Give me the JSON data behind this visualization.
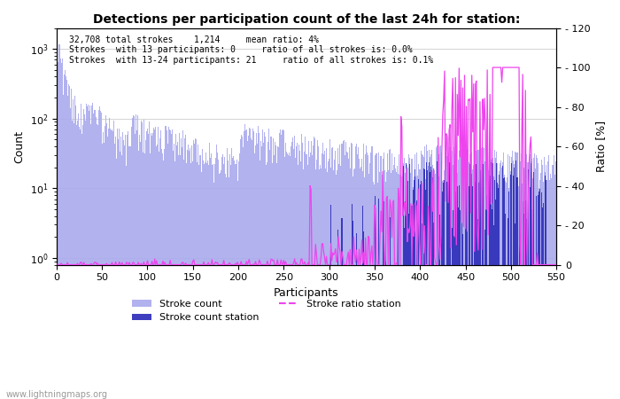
{
  "title": "Detections per participation count of the last 24h for station:",
  "xlabel": "Participants",
  "ylabel_left": "Count",
  "ylabel_right": "Ratio [%]",
  "annotation_lines": [
    "32,708 total strokes    1,214     mean ratio: 4%",
    "Strokes  with 13 participants: 0     ratio of all strokes is: 0.0%",
    "Strokes  with 13-24 participants: 21     ratio of all strokes is: 0.1%"
  ],
  "xlim": [
    0,
    550
  ],
  "ylim_right": [
    0,
    120
  ],
  "bar_color_main": "#aaaaee",
  "bar_color_station": "#3333bb",
  "line_color_ratio": "#ee44ee",
  "watermark": "www.lightningmaps.org",
  "legend": [
    {
      "label": "Stroke count",
      "color": "#aaaaee"
    },
    {
      "label": "Stroke count station",
      "color": "#3333bb"
    },
    {
      "label": "Stroke ratio station",
      "color": "#ee44ee",
      "linestyle": "--"
    }
  ],
  "right_yticks": [
    0,
    20,
    40,
    60,
    80,
    100,
    120
  ]
}
